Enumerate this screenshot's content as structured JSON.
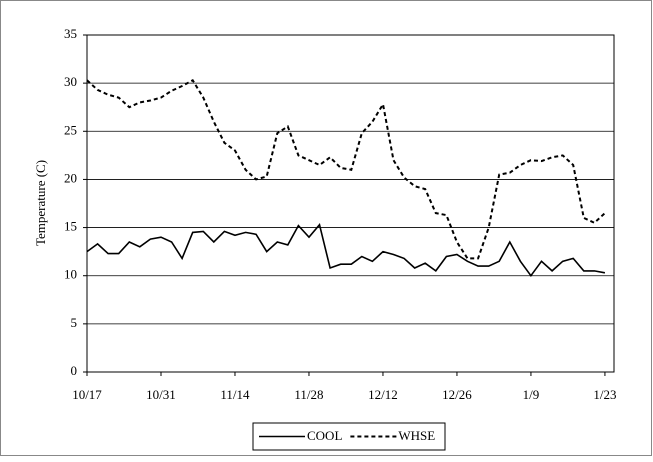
{
  "chart_data": {
    "type": "line",
    "y_label": "Temperature (C)",
    "categories": [
      "10/17",
      null,
      null,
      null,
      null,
      null,
      null,
      "10/31",
      null,
      null,
      null,
      null,
      null,
      null,
      "11/14",
      null,
      null,
      null,
      null,
      null,
      null,
      "11/28",
      null,
      null,
      null,
      null,
      null,
      null,
      "12/12",
      null,
      null,
      null,
      null,
      null,
      null,
      "12/26",
      null,
      null,
      null,
      null,
      null,
      null,
      "1/9",
      null,
      null,
      null,
      null,
      null,
      null,
      "1/23"
    ],
    "series": [
      {
        "name": "COOL",
        "color": "#000000",
        "style": "solid",
        "values": [
          12.5,
          13.3,
          12.3,
          12.3,
          13.5,
          13,
          13.8,
          14,
          13.5,
          11.8,
          14.5,
          14.6,
          13.5,
          14.6,
          14.2,
          14.5,
          14.3,
          12.5,
          13.5,
          13.2,
          15.2,
          14,
          15.3,
          10.8,
          11.2,
          11.2,
          12,
          11.5,
          12.5,
          12.2,
          11.8,
          10.8,
          11.3,
          10.5,
          12,
          12.2,
          11.5,
          11,
          11,
          11.5,
          13.5,
          11.5,
          10,
          11.5,
          10.5,
          11.5,
          11.8,
          10.5,
          10.5,
          10.3
        ]
      },
      {
        "name": "WHSE",
        "color": "#000000",
        "style": "dashed",
        "values": [
          30.3,
          29.3,
          28.8,
          28.5,
          27.5,
          28,
          28.2,
          28.5,
          29.2,
          29.7,
          30.3,
          28.5,
          26,
          23.8,
          23,
          21,
          20,
          20.3,
          24.8,
          25.5,
          22.5,
          22,
          21.5,
          22.3,
          21.2,
          21,
          24.8,
          26,
          27.8,
          22,
          20.2,
          19.3,
          19,
          16.5,
          16.3,
          13.5,
          11.8,
          11.8,
          15,
          20.5,
          20.7,
          21.5,
          22,
          21.9,
          22.3,
          22.5,
          21.5,
          16,
          15.5,
          16.5
        ]
      }
    ],
    "ylim": [
      0,
      35
    ],
    "yticks": [
      0,
      5,
      10,
      15,
      20,
      25,
      30,
      35
    ],
    "grid": true,
    "legend": "bottom"
  }
}
